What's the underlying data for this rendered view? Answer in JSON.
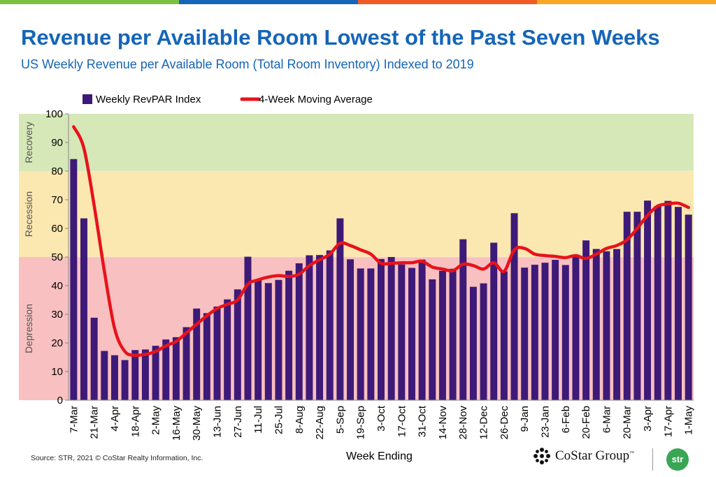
{
  "header": {
    "title": "Revenue per Available Room Lowest of the Past Seven Weeks",
    "subtitle": "US Weekly Revenue per Available Room (Total Room Inventory) Indexed to 2019"
  },
  "footer": {
    "source": "Source: STR, 2021 © CoStar Realty Information, Inc.",
    "logo_text": "CoStar Group",
    "logo_tm": "™",
    "badge_text": "str"
  },
  "colors": {
    "top_stripes": [
      "#7cc242",
      "#1565b8",
      "#f15a22",
      "#f7a823"
    ],
    "bar": "#3d1a78",
    "line": "#e8121b",
    "recovery_band": "#d6e8b8",
    "recession_band": "#fbe7b0",
    "depression_band": "#f8c0c0",
    "title": "#1565b8"
  },
  "chart_data": {
    "type": "bar",
    "xlabel": "Week Ending",
    "ylabel": "",
    "ylim": [
      0,
      100
    ],
    "yticks": [
      0,
      10,
      20,
      30,
      40,
      50,
      60,
      70,
      80,
      90,
      100
    ],
    "x_tick_labels": [
      "7-Mar",
      "21-Mar",
      "4-Apr",
      "18-Apr",
      "2-May",
      "16-May",
      "30-May",
      "13-Jun",
      "27-Jun",
      "11-Jul",
      "25-Jul",
      "8-Aug",
      "22-Aug",
      "5-Sep",
      "19-Sep",
      "3-Oct",
      "17-Oct",
      "31-Oct",
      "14-Nov",
      "28-Nov",
      "12-Dec",
      "26-Dec",
      "9-Jan",
      "23-Jan",
      "6-Feb",
      "20-Feb",
      "6-Mar",
      "20-Mar",
      "3-Apr",
      "17-Apr",
      "1-May"
    ],
    "bands": [
      {
        "label": "Recovery",
        "from": 80,
        "to": 100
      },
      {
        "label": "Recession",
        "from": 50,
        "to": 80
      },
      {
        "label": "Depression",
        "from": 0,
        "to": 50
      }
    ],
    "legend": {
      "position": "top-left"
    },
    "series": [
      {
        "name": "Weekly RevPAR Index",
        "type": "bar",
        "values": [
          84.2,
          63.5,
          28.8,
          17.2,
          15.7,
          14.0,
          17.5,
          17.7,
          19.0,
          21.2,
          22.0,
          25.5,
          32.0,
          30.4,
          32.7,
          35.2,
          38.7,
          50.1,
          42.0,
          40.9,
          42.0,
          45.2,
          47.8,
          50.6,
          50.7,
          52.3,
          63.5,
          49.2,
          46.0,
          46.0,
          49.3,
          50.0,
          47.4,
          46.2,
          49.1,
          42.2,
          45.2,
          45.9,
          56.2,
          39.6,
          40.8,
          55.0,
          45.0,
          65.3,
          46.3,
          47.3,
          48.0,
          49.0,
          47.2,
          50.7,
          55.8,
          52.8,
          52.0,
          52.8,
          65.8,
          65.8,
          69.7,
          67.8,
          69.6,
          67.5,
          64.8
        ]
      },
      {
        "name": "4-Week Moving Average",
        "type": "line",
        "values": [
          95.5,
          88.0,
          68.0,
          45.0,
          25.0,
          17.0,
          15.7,
          16.0,
          17.0,
          19.0,
          20.5,
          23.5,
          26.5,
          29.5,
          32.0,
          33.5,
          35.0,
          40.5,
          42.0,
          43.0,
          43.5,
          43.2,
          44.0,
          47.0,
          49.0,
          51.0,
          54.8,
          54.0,
          52.5,
          51.0,
          47.8,
          47.8,
          48.0,
          48.0,
          48.5,
          46.5,
          45.8,
          45.2,
          47.5,
          47.0,
          45.8,
          48.0,
          45.0,
          52.5,
          53.0,
          51.0,
          50.5,
          50.2,
          49.8,
          50.5,
          49.5,
          51.0,
          53.0,
          54.0,
          56.0,
          60.0,
          64.5,
          67.8,
          68.5,
          68.8,
          67.3
        ]
      }
    ]
  }
}
